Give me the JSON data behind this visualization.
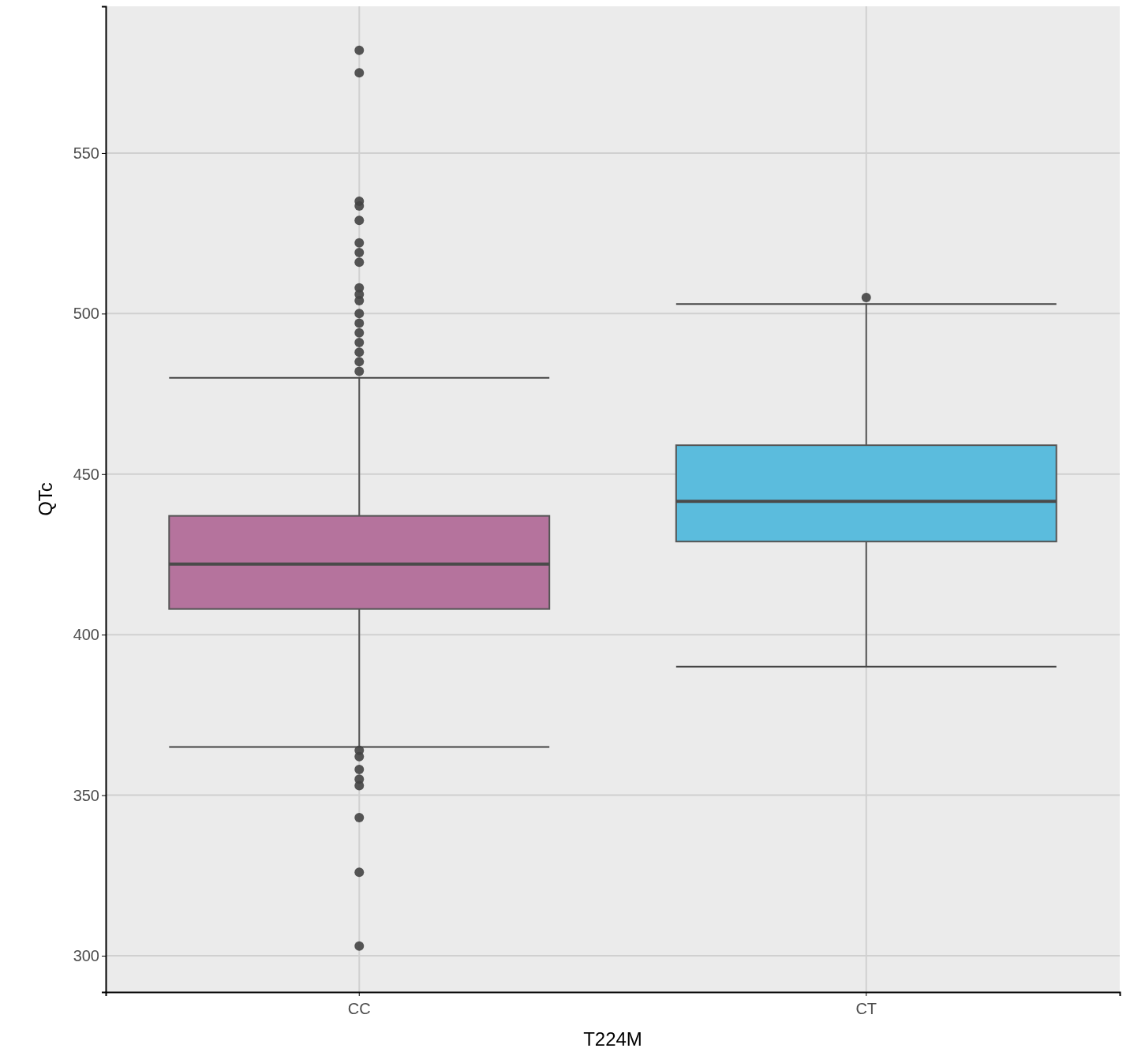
{
  "chart_data": {
    "type": "box",
    "xlabel": "T224M",
    "ylabel": "QTc",
    "categories": [
      "CC",
      "CT"
    ],
    "colors": [
      "#b5739d",
      "#5bbcdd"
    ],
    "boxes": [
      {
        "low": 365,
        "q1": 408,
        "median": 422,
        "q3": 437,
        "high": 480,
        "outliers": [
          582,
          575,
          535,
          533.5,
          529,
          522,
          519,
          516,
          508,
          506,
          504,
          500,
          497,
          494,
          491,
          488,
          485,
          482,
          364,
          362,
          358,
          355,
          353,
          343,
          326,
          303
        ]
      },
      {
        "low": 390,
        "q1": 429,
        "median": 441.5,
        "q3": 459,
        "high": 503,
        "outliers": [
          505
        ]
      }
    ],
    "ylim": [
      288.7,
      595.7
    ],
    "yticks": [
      300,
      350,
      400,
      450,
      500,
      550
    ],
    "grid": true
  }
}
